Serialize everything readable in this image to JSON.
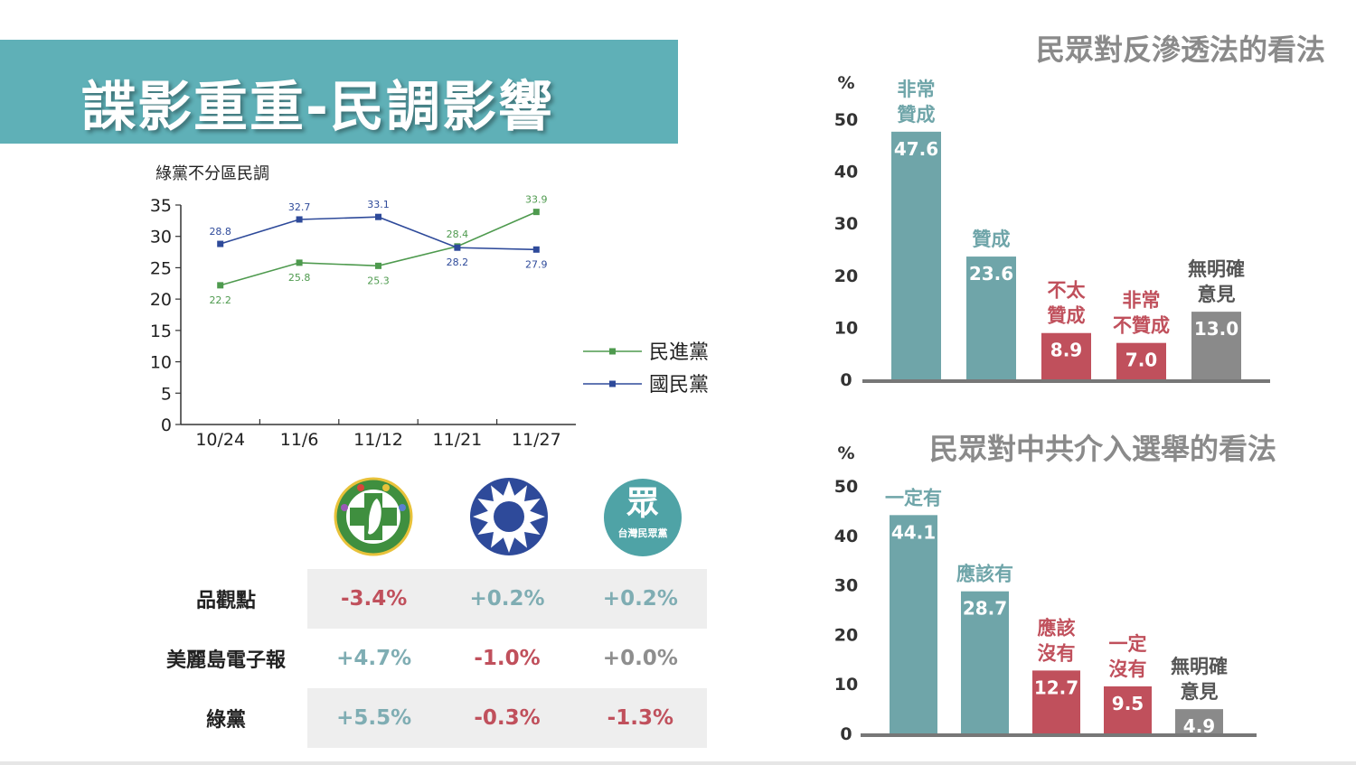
{
  "header": {
    "title": "諜影重重-民調影響"
  },
  "line_chart": {
    "title": "綠黨不分區民調"
  },
  "bar_chart_1": {
    "title": "民眾對反滲透法的看法",
    "unit": "%"
  },
  "bar_chart_2": {
    "title": "民眾對中共介入選舉的看法",
    "unit": "%"
  },
  "logos": [
    {
      "name": "dpp-logo",
      "text": ""
    },
    {
      "name": "kmt-logo",
      "text": ""
    },
    {
      "name": "tpp-logo",
      "glyph": "眾",
      "text": "台灣民眾黨"
    }
  ],
  "table": {
    "rows": [
      {
        "label": "品觀點",
        "values": [
          "-3.4%",
          "+0.2%",
          "+0.2%"
        ],
        "tones": [
          "neg",
          "pos",
          "pos"
        ]
      },
      {
        "label": "美麗島電子報",
        "values": [
          "+4.7%",
          "-1.0%",
          "+0.0%"
        ],
        "tones": [
          "pos",
          "neg",
          "zero"
        ]
      },
      {
        "label": "綠黨",
        "values": [
          "+5.5%",
          "-0.3%",
          "-1.3%"
        ],
        "tones": [
          "pos",
          "neg",
          "neg"
        ]
      }
    ]
  },
  "colors": {
    "teal": "#5fb0b7",
    "bar_teal": "#6fa5a9",
    "bar_red": "#c0505c",
    "bar_gray": "#8a8a8a",
    "dpp_green": "#4e9a4e",
    "kmt_blue": "#2e4a9a"
  },
  "chart_data": [
    {
      "type": "line",
      "title": "綠黨不分區民調",
      "categories": [
        "10/24",
        "11/6",
        "11/12",
        "11/21",
        "11/27"
      ],
      "yticks": [
        0,
        5,
        10,
        15,
        20,
        25,
        30,
        35
      ],
      "ylim": [
        0,
        35
      ],
      "series": [
        {
          "name": "民進黨",
          "color": "#4e9a4e",
          "values": [
            22.2,
            25.8,
            25.3,
            28.4,
            33.9
          ]
        },
        {
          "name": "國民黨",
          "color": "#2e4a9a",
          "values": [
            28.8,
            32.7,
            33.1,
            28.2,
            27.9
          ]
        }
      ],
      "legend": "right"
    },
    {
      "type": "bar",
      "title": "民眾對反滲透法的看法",
      "ylabel": "%",
      "yticks": [
        0,
        10,
        20,
        30,
        40,
        50
      ],
      "ylim": [
        0,
        50
      ],
      "categories": [
        [
          "非常",
          "贊成"
        ],
        [
          "贊成"
        ],
        [
          "不太",
          "贊成"
        ],
        [
          "非常",
          "不贊成"
        ],
        [
          "無明確",
          "意見"
        ]
      ],
      "values": [
        47.6,
        23.6,
        8.9,
        7.0,
        13.0
      ],
      "labels": [
        "47.6",
        "23.6",
        "8.9",
        "7.0",
        "13.0"
      ],
      "colors": [
        "#6fa5a9",
        "#6fa5a9",
        "#c0505c",
        "#c0505c",
        "#8a8a8a"
      ]
    },
    {
      "type": "bar",
      "title": "民眾對中共介入選舉的看法",
      "ylabel": "%",
      "yticks": [
        0,
        10,
        20,
        30,
        40,
        50
      ],
      "ylim": [
        0,
        50
      ],
      "categories": [
        [
          "一定有"
        ],
        [
          "應該有"
        ],
        [
          "應該",
          "沒有"
        ],
        [
          "一定",
          "沒有"
        ],
        [
          "無明確",
          "意見"
        ]
      ],
      "values": [
        44.1,
        28.7,
        12.7,
        9.5,
        4.9
      ],
      "labels": [
        "44.1",
        "28.7",
        "12.7",
        "9.5",
        "4.9"
      ],
      "colors": [
        "#6fa5a9",
        "#6fa5a9",
        "#c0505c",
        "#c0505c",
        "#8a8a8a"
      ]
    }
  ]
}
